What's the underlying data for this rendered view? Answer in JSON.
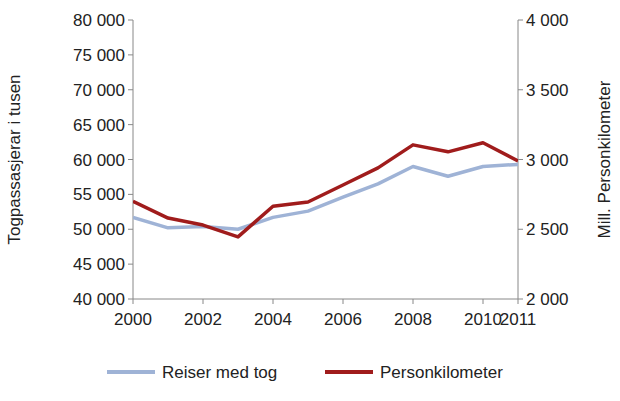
{
  "chart_data": {
    "type": "line",
    "x": [
      2000,
      2001,
      2002,
      2003,
      2004,
      2005,
      2006,
      2007,
      2008,
      2009,
      2010,
      2011
    ],
    "xlim": [
      2000,
      2011
    ],
    "xticks": [
      2000,
      2002,
      2004,
      2006,
      2008,
      2010,
      2011
    ],
    "ylabel": "Togpassasjerar i tusen",
    "ylim": [
      40000,
      80000
    ],
    "yticks": [
      {
        "value": 40000,
        "label": "40 000"
      },
      {
        "value": 45000,
        "label": "45 000"
      },
      {
        "value": 50000,
        "label": "50 000"
      },
      {
        "value": 55000,
        "label": "55 000"
      },
      {
        "value": 60000,
        "label": "60 000"
      },
      {
        "value": 65000,
        "label": "65 000"
      },
      {
        "value": 70000,
        "label": "70 000"
      },
      {
        "value": 75000,
        "label": "75 000"
      },
      {
        "value": 80000,
        "label": "80 000"
      }
    ],
    "y2label": "Mill. Personkilometer",
    "y2lim": [
      2000,
      4000
    ],
    "y2ticks": [
      {
        "value": 2000,
        "label": "2 000"
      },
      {
        "value": 2500,
        "label": "2 500"
      },
      {
        "value": 3000,
        "label": "3 000"
      },
      {
        "value": 3500,
        "label": "3 500"
      },
      {
        "value": 4000,
        "label": "4 000"
      }
    ],
    "grid": false,
    "legend": "bottom",
    "series": [
      {
        "name": "Reiser med tog",
        "color": "#9fb3d6",
        "values": [
          51700,
          50200,
          50400,
          50000,
          51700,
          52600,
          54600,
          56500,
          59000,
          57600,
          59000,
          59300
        ]
      },
      {
        "name": "Personkilometer",
        "color": "#a01c1c",
        "axis": "y2",
        "values": [
          2700,
          2580,
          2530,
          2445,
          2665,
          2695,
          2817,
          2940,
          3105,
          3055,
          3120,
          2990
        ]
      }
    ]
  }
}
